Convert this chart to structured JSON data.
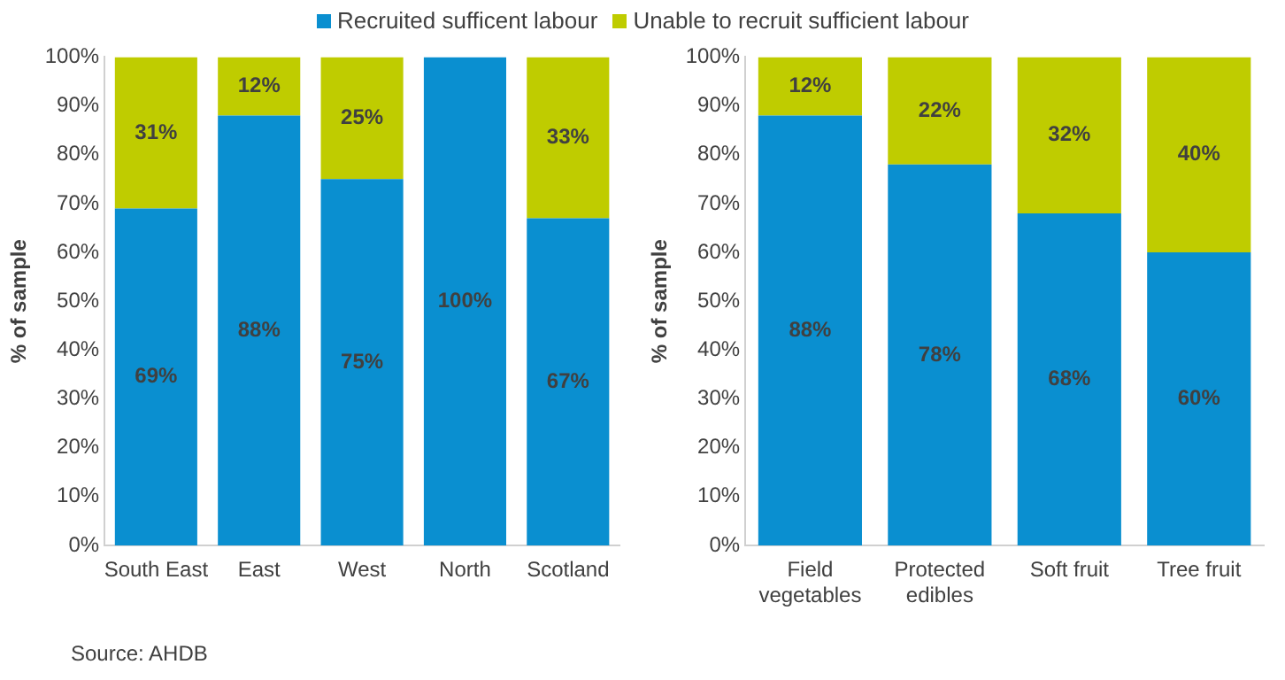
{
  "chart_data": [
    {
      "type": "bar",
      "stacked": true,
      "ylabel": "% of sample",
      "legend": "top",
      "categories": [
        "South East",
        "East",
        "West",
        "North",
        "Scotland"
      ],
      "ylim": [
        0,
        100
      ],
      "yticks": [
        {
          "value": 0,
          "label": "0%"
        },
        {
          "value": 10,
          "label": "10%"
        },
        {
          "value": 20,
          "label": "20%"
        },
        {
          "value": 30,
          "label": "30%"
        },
        {
          "value": 40,
          "label": "40%"
        },
        {
          "value": 50,
          "label": "50%"
        },
        {
          "value": 60,
          "label": "60%"
        },
        {
          "value": 70,
          "label": "70%"
        },
        {
          "value": 80,
          "label": "80%"
        },
        {
          "value": 90,
          "label": "90%"
        },
        {
          "value": 100,
          "label": "100%"
        }
      ],
      "series": [
        {
          "name": "Recruited sufficent labour",
          "color": "#0a8fd0",
          "values": [
            69,
            88,
            75,
            100,
            67
          ],
          "value_labels": [
            "69%",
            "88%",
            "75%",
            "100%",
            "67%"
          ]
        },
        {
          "name": "Unable to recruit sufficient labour",
          "color": "#bfcc00",
          "values": [
            31,
            12,
            25,
            null,
            33
          ],
          "value_labels": [
            "31%",
            "12%",
            "25%",
            null,
            "33%"
          ]
        }
      ],
      "annotations": [
        "Source: AHDB"
      ]
    },
    {
      "type": "bar",
      "stacked": true,
      "ylabel": "% of sample",
      "categories": [
        "Field vegetables",
        "Protected edibles",
        "Soft fruit",
        "Tree fruit"
      ],
      "ylim": [
        0,
        100
      ],
      "yticks": [
        {
          "value": 0,
          "label": "0%"
        },
        {
          "value": 10,
          "label": "10%"
        },
        {
          "value": 20,
          "label": "20%"
        },
        {
          "value": 30,
          "label": "30%"
        },
        {
          "value": 40,
          "label": "40%"
        },
        {
          "value": 50,
          "label": "50%"
        },
        {
          "value": 60,
          "label": "60%"
        },
        {
          "value": 70,
          "label": "70%"
        },
        {
          "value": 80,
          "label": "80%"
        },
        {
          "value": 90,
          "label": "90%"
        },
        {
          "value": 100,
          "label": "100%"
        }
      ],
      "series": [
        {
          "color": "#0a8fd0",
          "values": [
            88,
            78,
            68,
            60
          ],
          "value_labels": [
            "88%",
            "78%",
            "68%",
            "60%"
          ]
        },
        {
          "color": "#bfcc00",
          "values": [
            12,
            22,
            32,
            40
          ],
          "value_labels": [
            "12%",
            "22%",
            "32%",
            "40%"
          ]
        }
      ]
    }
  ]
}
